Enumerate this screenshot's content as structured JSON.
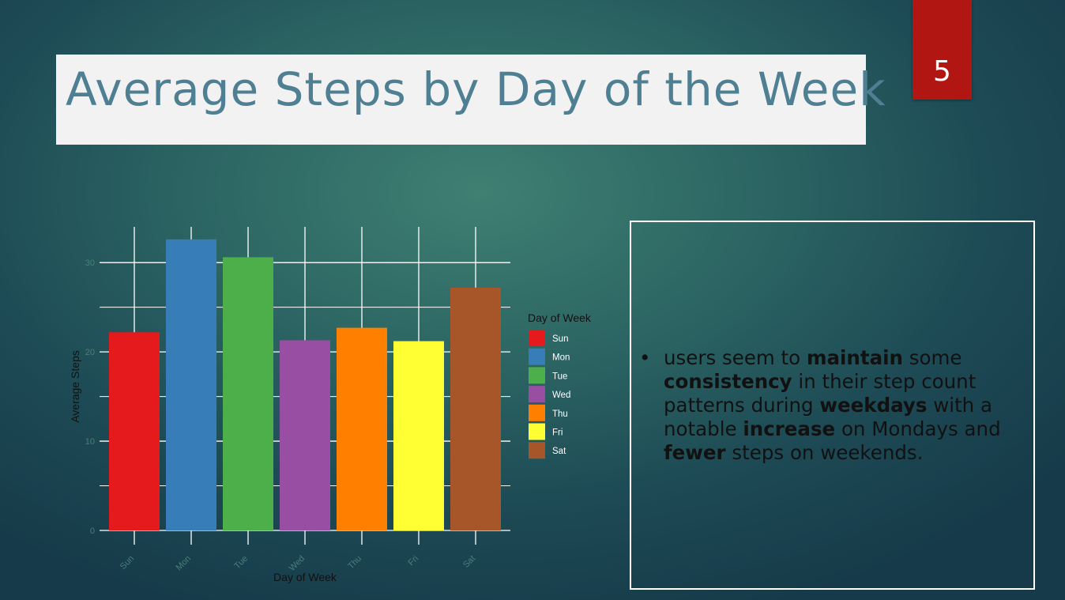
{
  "slide": {
    "title": "Average Steps by Day of the Week",
    "page_number": "5"
  },
  "bullet": {
    "marker": "•",
    "segments": [
      {
        "text": "users seem to ",
        "bold": false
      },
      {
        "text": "maintain",
        "bold": true
      },
      {
        "text": " some ",
        "bold": false
      },
      {
        "text": "consistency",
        "bold": true
      },
      {
        "text": " in their step count patterns during ",
        "bold": false
      },
      {
        "text": "weekdays",
        "bold": true
      },
      {
        "text": " with a notable ",
        "bold": false
      },
      {
        "text": "increase",
        "bold": true
      },
      {
        "text": " on Mondays and ",
        "bold": false
      },
      {
        "text": "fewer",
        "bold": true
      },
      {
        "text": " steps on weekends.",
        "bold": false
      }
    ]
  },
  "colors": {
    "title_text": "#4f7f92",
    "page_tab": "#b11613",
    "grid": "#ffffff"
  },
  "chart_data": {
    "type": "bar",
    "title": "",
    "xlabel": "Day of Week",
    "ylabel": "Average Steps",
    "categories": [
      "Sun",
      "Mon",
      "Tue",
      "Wed",
      "Thu",
      "Fri",
      "Sat"
    ],
    "values": [
      22.2,
      32.6,
      30.6,
      21.3,
      22.7,
      21.2,
      27.2
    ],
    "colors": [
      "#e41a1c",
      "#377eb8",
      "#4daf4a",
      "#984ea3",
      "#ff7f00",
      "#ffff33",
      "#a65628"
    ],
    "ylim": [
      0,
      34
    ],
    "y_ticks": [
      0,
      10,
      20,
      30
    ],
    "grid": true,
    "legend": {
      "title": "Day of Week",
      "placement": "right",
      "entries": [
        "Sun",
        "Mon",
        "Tue",
        "Wed",
        "Thu",
        "Fri",
        "Sat"
      ]
    }
  }
}
